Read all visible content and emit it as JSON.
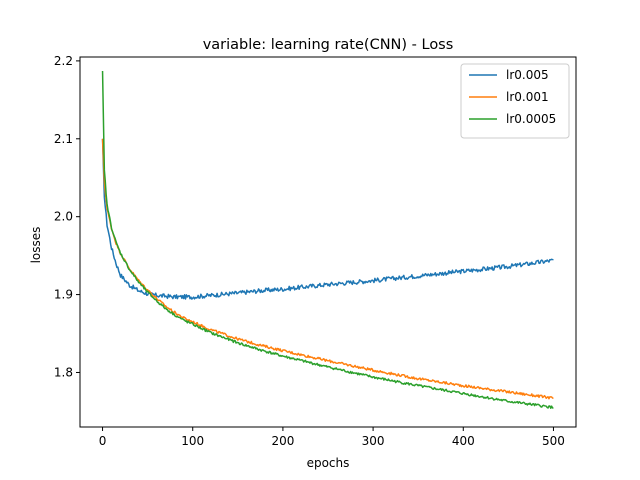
{
  "chart_data": {
    "type": "line",
    "title": "variable: learning rate(CNN) - Loss",
    "xlabel": "epochs",
    "ylabel": "losses",
    "xlim": [
      -25,
      525
    ],
    "ylim": [
      1.73,
      2.205
    ],
    "xticks": [
      0,
      100,
      200,
      300,
      400,
      500
    ],
    "yticks": [
      1.8,
      1.9,
      2.0,
      2.1,
      2.2
    ],
    "xtick_labels": [
      "0",
      "100",
      "200",
      "300",
      "400",
      "500"
    ],
    "ytick_labels": [
      "1.8",
      "1.9",
      "2.0",
      "2.1",
      "2.2"
    ],
    "grid": false,
    "legend_position": "top-right",
    "series": [
      {
        "name": "lr0.005",
        "color": "#1f77b4",
        "x": [
          0,
          2,
          5,
          10,
          15,
          20,
          30,
          40,
          50,
          60,
          70,
          80,
          90,
          100,
          120,
          150,
          175,
          200,
          250,
          300,
          350,
          400,
          450,
          500
        ],
        "y": [
          2.1,
          2.025,
          1.99,
          1.96,
          1.94,
          1.925,
          1.912,
          1.905,
          1.901,
          1.899,
          1.898,
          1.897,
          1.897,
          1.897,
          1.899,
          1.902,
          1.905,
          1.907,
          1.913,
          1.918,
          1.924,
          1.93,
          1.936,
          1.944
        ]
      },
      {
        "name": "lr0.001",
        "color": "#ff7f0e",
        "x": [
          0,
          2,
          5,
          10,
          15,
          20,
          30,
          40,
          50,
          60,
          70,
          80,
          90,
          100,
          120,
          150,
          175,
          200,
          250,
          300,
          350,
          400,
          450,
          500
        ],
        "y": [
          2.1,
          2.045,
          2.01,
          1.985,
          1.966,
          1.953,
          1.933,
          1.918,
          1.906,
          1.895,
          1.885,
          1.877,
          1.87,
          1.865,
          1.855,
          1.843,
          1.835,
          1.828,
          1.815,
          1.803,
          1.792,
          1.783,
          1.775,
          1.767
        ]
      },
      {
        "name": "lr0.0005",
        "color": "#2ca02c",
        "x": [
          0,
          2,
          5,
          10,
          15,
          20,
          30,
          40,
          50,
          60,
          70,
          80,
          90,
          100,
          120,
          150,
          175,
          200,
          250,
          300,
          350,
          400,
          450,
          500
        ],
        "y": [
          2.187,
          2.06,
          2.015,
          1.986,
          1.967,
          1.953,
          1.932,
          1.916,
          1.903,
          1.892,
          1.882,
          1.874,
          1.867,
          1.862,
          1.851,
          1.838,
          1.829,
          1.821,
          1.807,
          1.794,
          1.783,
          1.773,
          1.763,
          1.755
        ]
      }
    ]
  }
}
